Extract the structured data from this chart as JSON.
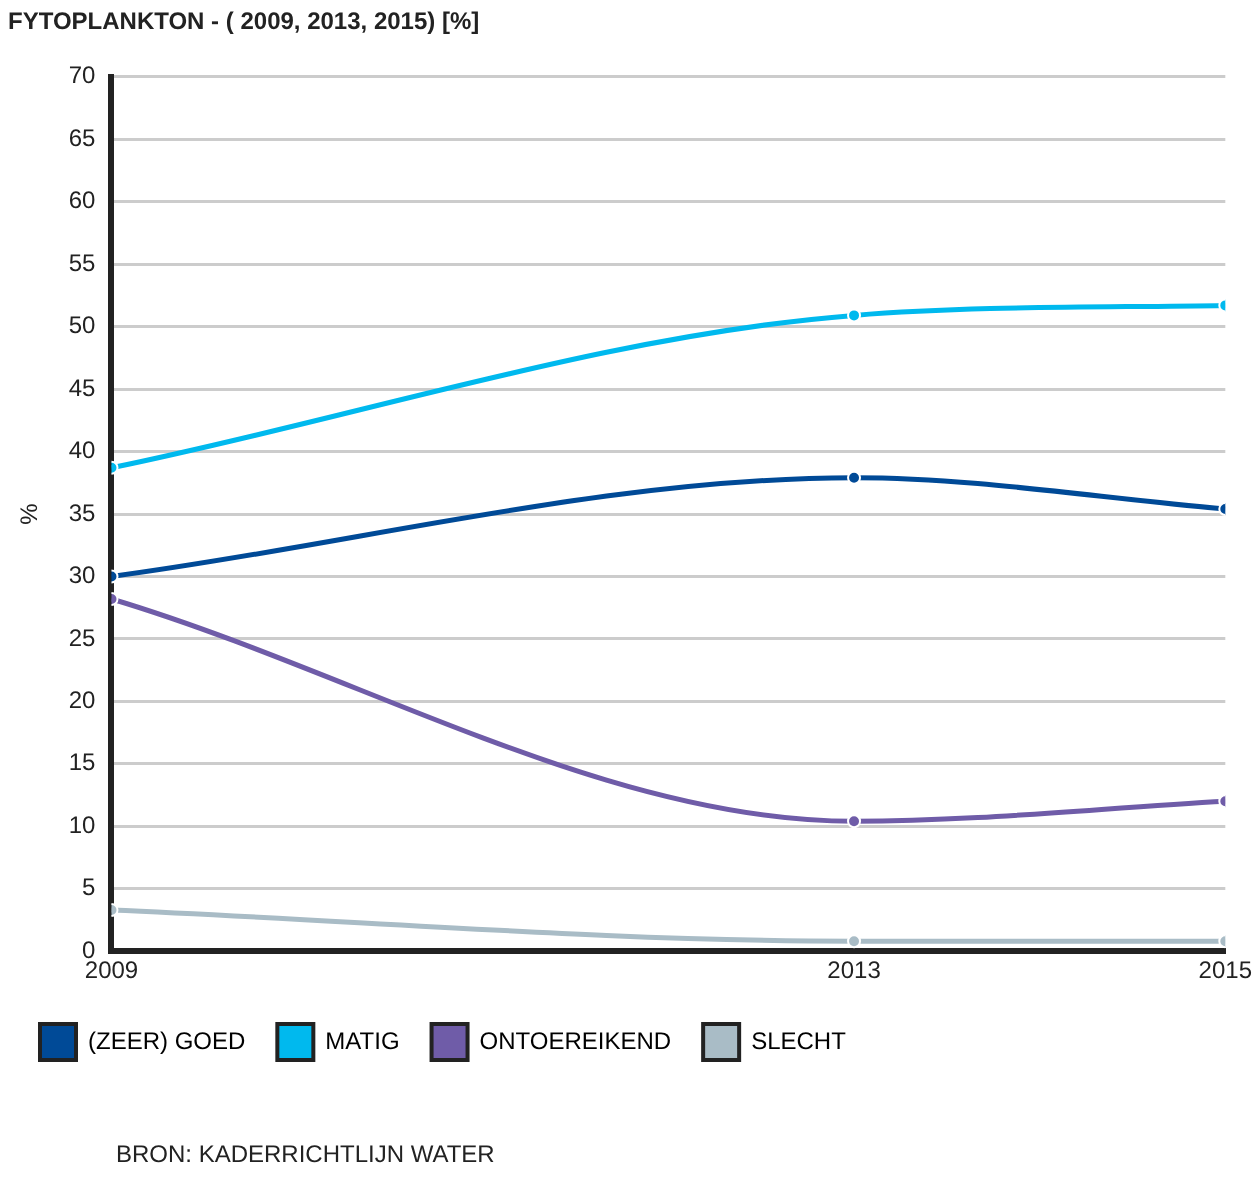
{
  "chart_data": {
    "type": "line",
    "title": "FYTOPLANKTON - ( 2009, 2013, 2015) [%]",
    "ylabel": "%",
    "x": [
      2009,
      2013,
      2015
    ],
    "series": [
      {
        "name": "(ZEER) GOED",
        "color": "#004a97",
        "values": [
          30,
          37.9,
          35.4
        ]
      },
      {
        "name": "MATIG",
        "color": "#00b9ee",
        "values": [
          38.7,
          50.9,
          51.7
        ]
      },
      {
        "name": "ONTOEREIKEND",
        "color": "#6f5ca8",
        "values": [
          28.2,
          10.4,
          12
        ]
      },
      {
        "name": "SLECHT",
        "color": "#a9bcc6",
        "values": [
          3.3,
          0.8,
          0.8
        ]
      }
    ],
    "xlim": [
      2009,
      2015
    ],
    "xticks": [
      2009,
      2013,
      2015
    ],
    "ylim": [
      0,
      70
    ],
    "yticks": [
      0,
      5,
      10,
      15,
      20,
      25,
      30,
      35,
      40,
      45,
      50,
      55,
      60,
      65,
      70
    ],
    "grid": "y",
    "legend": "bottom",
    "marker": "circle",
    "line_style": "solid",
    "annotations": [
      "BRON: KADERRICHTLIJN WATER"
    ]
  }
}
